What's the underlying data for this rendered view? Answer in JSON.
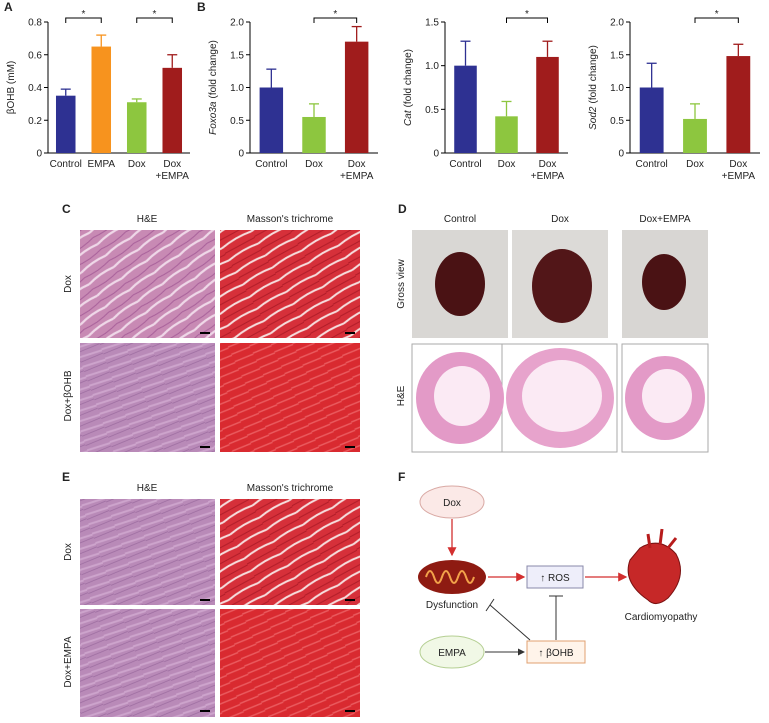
{
  "chart_data": [
    {
      "type": "bar",
      "ylabel": "βOHB (mM)",
      "categories": [
        [
          "Control"
        ],
        [
          "EMPA"
        ],
        [
          "Dox"
        ],
        [
          "Dox",
          "+EMPA"
        ]
      ],
      "values": [
        0.35,
        0.65,
        0.31,
        0.52
      ],
      "errors": [
        0.04,
        0.07,
        0.02,
        0.08
      ],
      "colors": [
        "#2e3192",
        "#f7931e",
        "#8dc63f",
        "#a01c1c"
      ],
      "ylim": [
        0,
        0.8
      ],
      "yticks": [
        0,
        0.2,
        0.4,
        0.6,
        0.8
      ],
      "significance": [
        {
          "label": "*",
          "span": [
            0,
            1
          ]
        },
        {
          "label": "*",
          "span": [
            2,
            3
          ]
        }
      ]
    },
    {
      "type": "bar",
      "gene": "Foxo3a",
      "ylabel": "(fold change)",
      "categories": [
        [
          "Control"
        ],
        [
          "Dox"
        ],
        [
          "Dox",
          "+EMPA"
        ]
      ],
      "values": [
        1.0,
        0.55,
        1.7
      ],
      "errors": [
        0.28,
        0.2,
        0.23
      ],
      "colors": [
        "#2e3192",
        "#8dc63f",
        "#a01c1c"
      ],
      "ylim": [
        0,
        2.0
      ],
      "yticks": [
        0,
        0.5,
        {
          "value": 1.0,
          "label": "1.0"
        },
        1.5,
        {
          "value": 2.0,
          "label": "2.0"
        }
      ],
      "significance": [
        {
          "label": "*",
          "span": [
            1,
            2
          ]
        }
      ]
    },
    {
      "type": "bar",
      "gene": "Cat",
      "ylabel": "(fold change)",
      "categories": [
        [
          "Control"
        ],
        [
          "Dox"
        ],
        [
          "Dox",
          "+EMPA"
        ]
      ],
      "values": [
        1.0,
        0.42,
        1.1
      ],
      "errors": [
        0.28,
        0.17,
        0.18
      ],
      "colors": [
        "#2e3192",
        "#8dc63f",
        "#a01c1c"
      ],
      "ylim": [
        0,
        1.5
      ],
      "yticks": [
        0,
        0.5,
        {
          "value": 1.0,
          "label": "1.0"
        },
        1.5
      ],
      "significance": [
        {
          "label": "*",
          "span": [
            1,
            2
          ]
        }
      ]
    },
    {
      "type": "bar",
      "gene": "Sod2",
      "ylabel": "(fold change)",
      "categories": [
        [
          "Control"
        ],
        [
          "Dox"
        ],
        [
          "Dox",
          "+EMPA"
        ]
      ],
      "values": [
        1.0,
        0.52,
        1.48
      ],
      "errors": [
        0.37,
        0.23,
        0.18
      ],
      "colors": [
        "#2e3192",
        "#8dc63f",
        "#a01c1c"
      ],
      "ylim": [
        0,
        2.0
      ],
      "yticks": [
        0,
        0.5,
        {
          "value": 1.0,
          "label": "1.0"
        },
        1.5,
        {
          "value": 2.0,
          "label": "2.0"
        }
      ],
      "significance": [
        {
          "label": "*",
          "span": [
            1,
            2
          ]
        }
      ]
    }
  ],
  "panel_labels": [
    "A",
    "B",
    "C",
    "D",
    "E",
    "F"
  ],
  "panel_c": {
    "columns": [
      "H&E",
      "Masson's trichrome"
    ],
    "rows": [
      "Dox",
      "Dox+βOHB"
    ]
  },
  "panel_d": {
    "columns": [
      "Control",
      "Dox",
      "Dox+EMPA"
    ],
    "rows": [
      "Gross view",
      "H&E"
    ]
  },
  "panel_e": {
    "columns": [
      "H&E",
      "Masson's trichrome"
    ],
    "rows": [
      "Dox",
      "Dox+EMPA"
    ]
  },
  "panel_f": {
    "dox": "Dox",
    "dysfunction": "Dysfunction",
    "ros": "↑ ROS",
    "cardiomyopathy": "Cardiomyopathy",
    "empa": "EMPA",
    "bohb": "↑ βOHB"
  }
}
